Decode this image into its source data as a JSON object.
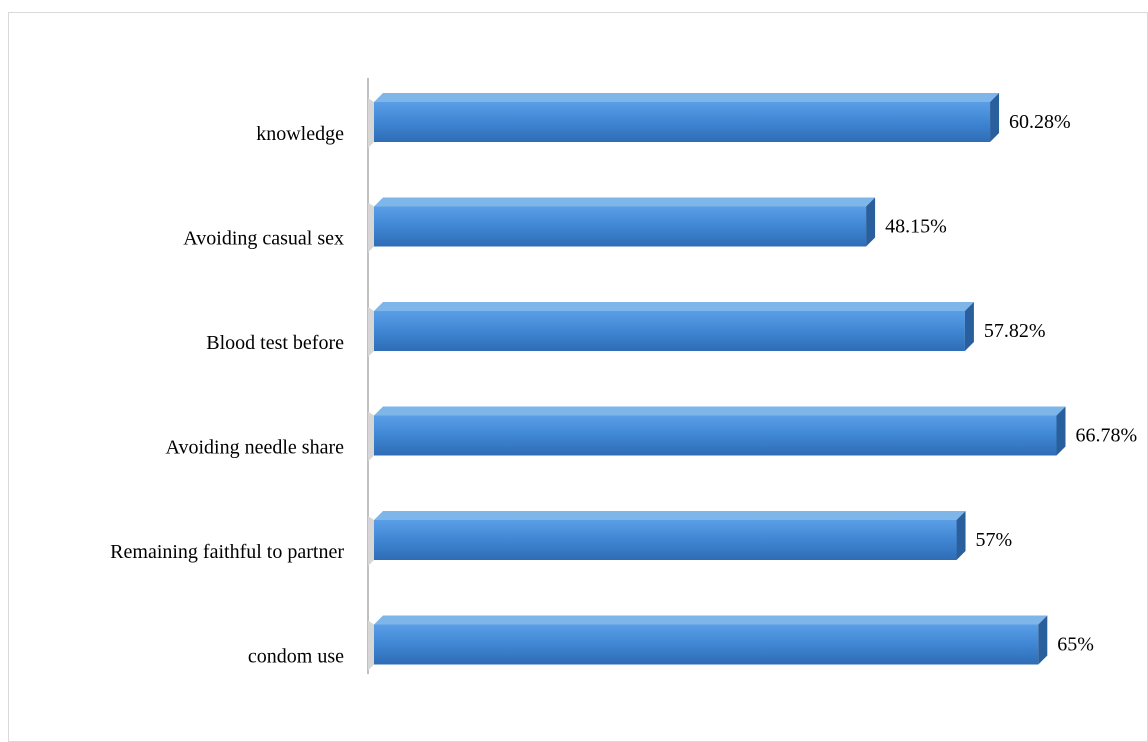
{
  "chart_data": {
    "type": "bar",
    "orientation": "horizontal",
    "title": "",
    "xlabel": "",
    "ylabel": "",
    "categories": [
      "knowledge",
      "Avoiding casual sex",
      "Blood test before",
      "Avoiding needle share",
      "Remaining faithful to partner",
      "condom use"
    ],
    "values": [
      60.28,
      48.15,
      57.82,
      66.78,
      57,
      65
    ],
    "value_labels": [
      "60.28%",
      "48.15%",
      "57.82%",
      "66.78%",
      "57%",
      "65%"
    ],
    "xlim": [
      0,
      70
    ],
    "grid": false,
    "legend": "none",
    "colors": {
      "bar_front": "#3f86d3",
      "bar_top": "#7fb6ea",
      "bar_side": "#2a5f9e",
      "axis": "#c0c0c0"
    }
  }
}
